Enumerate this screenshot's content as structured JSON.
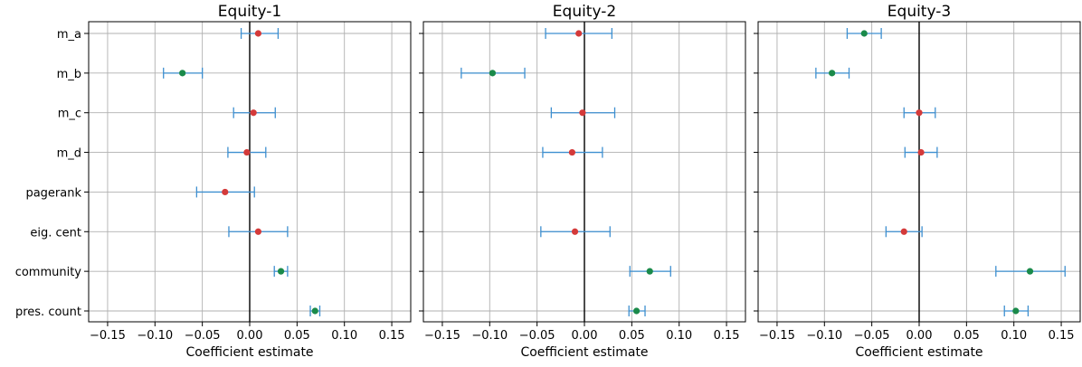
{
  "colors": {
    "errorbar": "#3d8fd0",
    "significant_point": "#1a8a4a",
    "nonsignificant_point": "#d43a3a",
    "grid": "#b0b0b0"
  },
  "chart_data": [
    {
      "type": "scatter",
      "title": "Equity-1",
      "xlabel": "Coefficient estimate",
      "ylabel": "",
      "xlim": [
        -0.17,
        0.17
      ],
      "xticks": [
        -0.15,
        -0.1,
        -0.05,
        0.0,
        0.05,
        0.1,
        0.15
      ],
      "xtick_labels": [
        "−0.15",
        "−0.10",
        "−0.05",
        "0.00",
        "0.05",
        "0.10",
        "0.15"
      ],
      "grid": true,
      "categories": [
        "m_a",
        "m_b",
        "m_c",
        "m_d",
        "pagerank",
        "eig. cent",
        "community",
        "pres. count"
      ],
      "points": [
        {
          "category": "m_a",
          "estimate": 0.009,
          "ci_low": -0.009,
          "ci_high": 0.03,
          "significant": false
        },
        {
          "category": "m_b",
          "estimate": -0.071,
          "ci_low": -0.091,
          "ci_high": -0.05,
          "significant": true
        },
        {
          "category": "m_c",
          "estimate": 0.004,
          "ci_low": -0.017,
          "ci_high": 0.027,
          "significant": false
        },
        {
          "category": "m_d",
          "estimate": -0.003,
          "ci_low": -0.023,
          "ci_high": 0.017,
          "significant": false
        },
        {
          "category": "pagerank",
          "estimate": -0.026,
          "ci_low": -0.056,
          "ci_high": 0.005,
          "significant": false
        },
        {
          "category": "eig. cent",
          "estimate": 0.009,
          "ci_low": -0.022,
          "ci_high": 0.04,
          "significant": false
        },
        {
          "category": "community",
          "estimate": 0.033,
          "ci_low": 0.026,
          "ci_high": 0.04,
          "significant": true
        },
        {
          "category": "pres. count",
          "estimate": 0.069,
          "ci_low": 0.064,
          "ci_high": 0.074,
          "significant": true
        }
      ]
    },
    {
      "type": "scatter",
      "title": "Equity-2",
      "xlabel": "Coefficient estimate",
      "ylabel": "",
      "xlim": [
        -0.17,
        0.17
      ],
      "xticks": [
        -0.15,
        -0.1,
        -0.05,
        0.0,
        0.05,
        0.1,
        0.15
      ],
      "xtick_labels": [
        "−0.15",
        "−0.10",
        "−0.05",
        "0.00",
        "0.05",
        "0.10",
        "0.15"
      ],
      "grid": true,
      "categories": [
        "m_a",
        "m_b",
        "m_c",
        "m_d",
        "pagerank",
        "eig. cent",
        "community",
        "pres. count"
      ],
      "points": [
        {
          "category": "m_a",
          "estimate": -0.006,
          "ci_low": -0.041,
          "ci_high": 0.029,
          "significant": false
        },
        {
          "category": "m_b",
          "estimate": -0.097,
          "ci_low": -0.13,
          "ci_high": -0.063,
          "significant": true
        },
        {
          "category": "m_c",
          "estimate": -0.002,
          "ci_low": -0.035,
          "ci_high": 0.032,
          "significant": false
        },
        {
          "category": "m_d",
          "estimate": -0.013,
          "ci_low": -0.044,
          "ci_high": 0.019,
          "significant": false
        },
        {
          "category": "pagerank",
          "estimate": null,
          "ci_low": null,
          "ci_high": null,
          "significant": false
        },
        {
          "category": "eig. cent",
          "estimate": -0.01,
          "ci_low": -0.046,
          "ci_high": 0.027,
          "significant": false
        },
        {
          "category": "community",
          "estimate": 0.069,
          "ci_low": 0.048,
          "ci_high": 0.091,
          "significant": true
        },
        {
          "category": "pres. count",
          "estimate": 0.055,
          "ci_low": 0.047,
          "ci_high": 0.064,
          "significant": true
        }
      ]
    },
    {
      "type": "scatter",
      "title": "Equity-3",
      "xlabel": "Coefficient estimate",
      "ylabel": "",
      "xlim": [
        -0.17,
        0.17
      ],
      "xticks": [
        -0.15,
        -0.1,
        -0.05,
        0.0,
        0.05,
        0.1,
        0.15
      ],
      "xtick_labels": [
        "−0.15",
        "−0.10",
        "−0.05",
        "0.00",
        "0.05",
        "0.10",
        "0.15"
      ],
      "grid": true,
      "categories": [
        "m_a",
        "m_b",
        "m_c",
        "m_d",
        "pagerank",
        "eig. cent",
        "community",
        "pres. count"
      ],
      "points": [
        {
          "category": "m_a",
          "estimate": -0.058,
          "ci_low": -0.076,
          "ci_high": -0.04,
          "significant": true
        },
        {
          "category": "m_b",
          "estimate": -0.092,
          "ci_low": -0.109,
          "ci_high": -0.074,
          "significant": true
        },
        {
          "category": "m_c",
          "estimate": 0.0,
          "ci_low": -0.016,
          "ci_high": 0.017,
          "significant": false
        },
        {
          "category": "m_d",
          "estimate": 0.002,
          "ci_low": -0.015,
          "ci_high": 0.019,
          "significant": false
        },
        {
          "category": "pagerank",
          "estimate": null,
          "ci_low": null,
          "ci_high": null,
          "significant": false
        },
        {
          "category": "eig. cent",
          "estimate": -0.016,
          "ci_low": -0.035,
          "ci_high": 0.003,
          "significant": false
        },
        {
          "category": "community",
          "estimate": 0.117,
          "ci_low": 0.081,
          "ci_high": 0.154,
          "significant": true
        },
        {
          "category": "pres. count",
          "estimate": 0.102,
          "ci_low": 0.09,
          "ci_high": 0.115,
          "significant": true
        }
      ]
    }
  ]
}
